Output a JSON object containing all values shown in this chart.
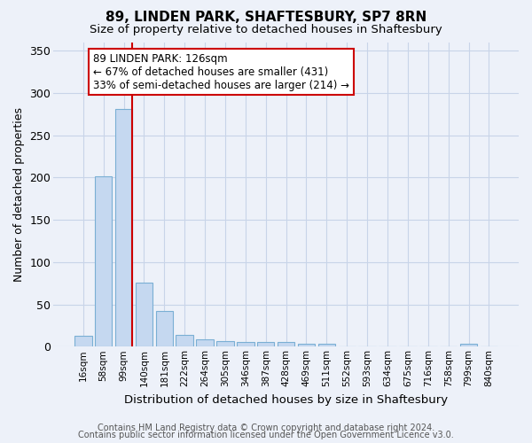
{
  "title1": "89, LINDEN PARK, SHAFTESBURY, SP7 8RN",
  "title2": "Size of property relative to detached houses in Shaftesbury",
  "xlabel": "Distribution of detached houses by size in Shaftesbury",
  "ylabel": "Number of detached properties",
  "bar_labels": [
    "16sqm",
    "58sqm",
    "99sqm",
    "140sqm",
    "181sqm",
    "222sqm",
    "264sqm",
    "305sqm",
    "346sqm",
    "387sqm",
    "428sqm",
    "469sqm",
    "511sqm",
    "552sqm",
    "593sqm",
    "634sqm",
    "675sqm",
    "716sqm",
    "758sqm",
    "799sqm",
    "840sqm"
  ],
  "bar_values": [
    13,
    201,
    281,
    76,
    42,
    14,
    9,
    7,
    5,
    6,
    6,
    3,
    3,
    0,
    0,
    0,
    0,
    0,
    0,
    3,
    0
  ],
  "bar_color": "#c5d8f0",
  "bar_edge_color": "#7aafd4",
  "grid_color": "#c8d4e8",
  "background_color": "#edf1f9",
  "vline_color": "#cc0000",
  "annotation_text": "89 LINDEN PARK: 126sqm\n← 67% of detached houses are smaller (431)\n33% of semi-detached houses are larger (214) →",
  "annotation_box_color": "#ffffff",
  "annotation_border_color": "#cc0000",
  "ylim": [
    0,
    360
  ],
  "yticks": [
    0,
    50,
    100,
    150,
    200,
    250,
    300,
    350
  ],
  "footer1": "Contains HM Land Registry data © Crown copyright and database right 2024.",
  "footer2": "Contains public sector information licensed under the Open Government Licence v3.0.",
  "title1_fontsize": 11,
  "title2_fontsize": 9.5,
  "annotation_fontsize": 8.5,
  "footer_fontsize": 7
}
